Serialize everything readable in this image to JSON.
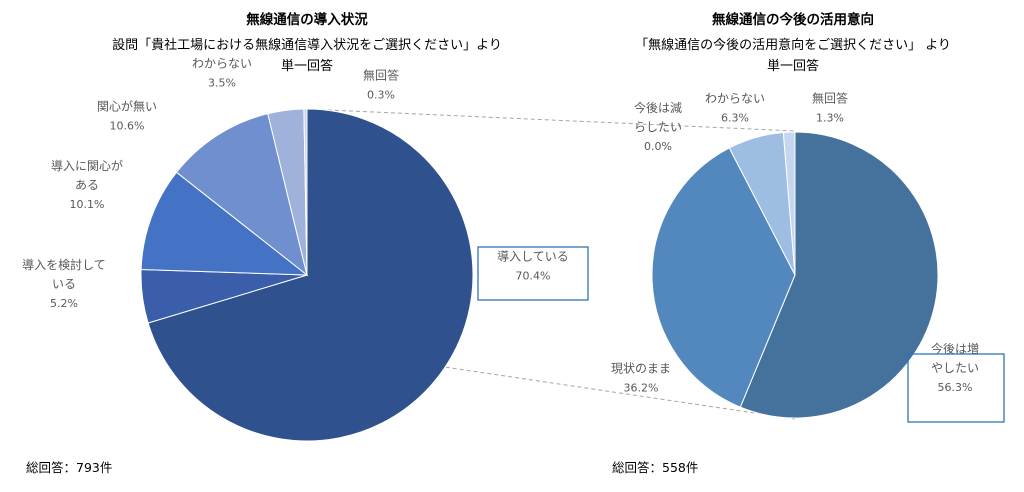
{
  "chart_data": [
    {
      "type": "pie",
      "title": "無線通信の導入状況",
      "subtitle_lines": [
        "設問「貴社工場における無線通信導入状況をご選択ください」より",
        "単一回答"
      ],
      "slices": [
        {
          "label": "導入している",
          "value": 70.4,
          "color": "#2f528f"
        },
        {
          "label": "導入を検討している",
          "value": 5.2,
          "color": "#3a5eaa"
        },
        {
          "label": "導入に関心がある",
          "value": 10.1,
          "color": "#4472c4"
        },
        {
          "label": "関心が無い",
          "value": 10.6,
          "color": "#6f8fcf"
        },
        {
          "label": "わからない",
          "value": 3.5,
          "color": "#9fb2dc"
        },
        {
          "label": "無回答",
          "value": 0.3,
          "color": "#c9d3ea"
        }
      ],
      "label_lines": [
        [
          "導入している"
        ],
        [
          "導入を検討して",
          "いる"
        ],
        [
          "導入に関心が",
          "ある"
        ],
        [
          "関心が無い"
        ],
        [
          "わからない"
        ],
        [
          "無回答"
        ]
      ],
      "value_labels": [
        "70.4%",
        "5.2%",
        "10.1%",
        "10.6%",
        "3.5%",
        "0.3%"
      ],
      "highlighted": "導入している",
      "total_label": "総回答：793件"
    },
    {
      "type": "pie",
      "title": "無線通信の今後の活用意向",
      "subtitle_lines": [
        "「無線通信の今後の活用意向をご選択ください」 より",
        "単一回答"
      ],
      "slices": [
        {
          "label": "今後は増やしたい",
          "value": 56.3,
          "color": "#44729c"
        },
        {
          "label": "現状のまま",
          "value": 36.2,
          "color": "#5288bd"
        },
        {
          "label": "今後は減らしたい",
          "value": 0.0,
          "color": "#7fa7d4"
        },
        {
          "label": "わからない",
          "value": 6.3,
          "color": "#9dbde2"
        },
        {
          "label": "無回答",
          "value": 1.3,
          "color": "#c5d7ee"
        }
      ],
      "label_lines": [
        [
          "今後は増",
          "やしたい"
        ],
        [
          "現状のまま"
        ],
        [
          "今後は減",
          "らしたい"
        ],
        [
          "わからない"
        ],
        [
          "無回答"
        ]
      ],
      "value_labels": [
        "56.3%",
        "36.2%",
        "0.0%",
        "6.3%",
        "1.3%"
      ],
      "highlighted": "今後は増やしたい",
      "total_label": "総回答：558件"
    }
  ]
}
